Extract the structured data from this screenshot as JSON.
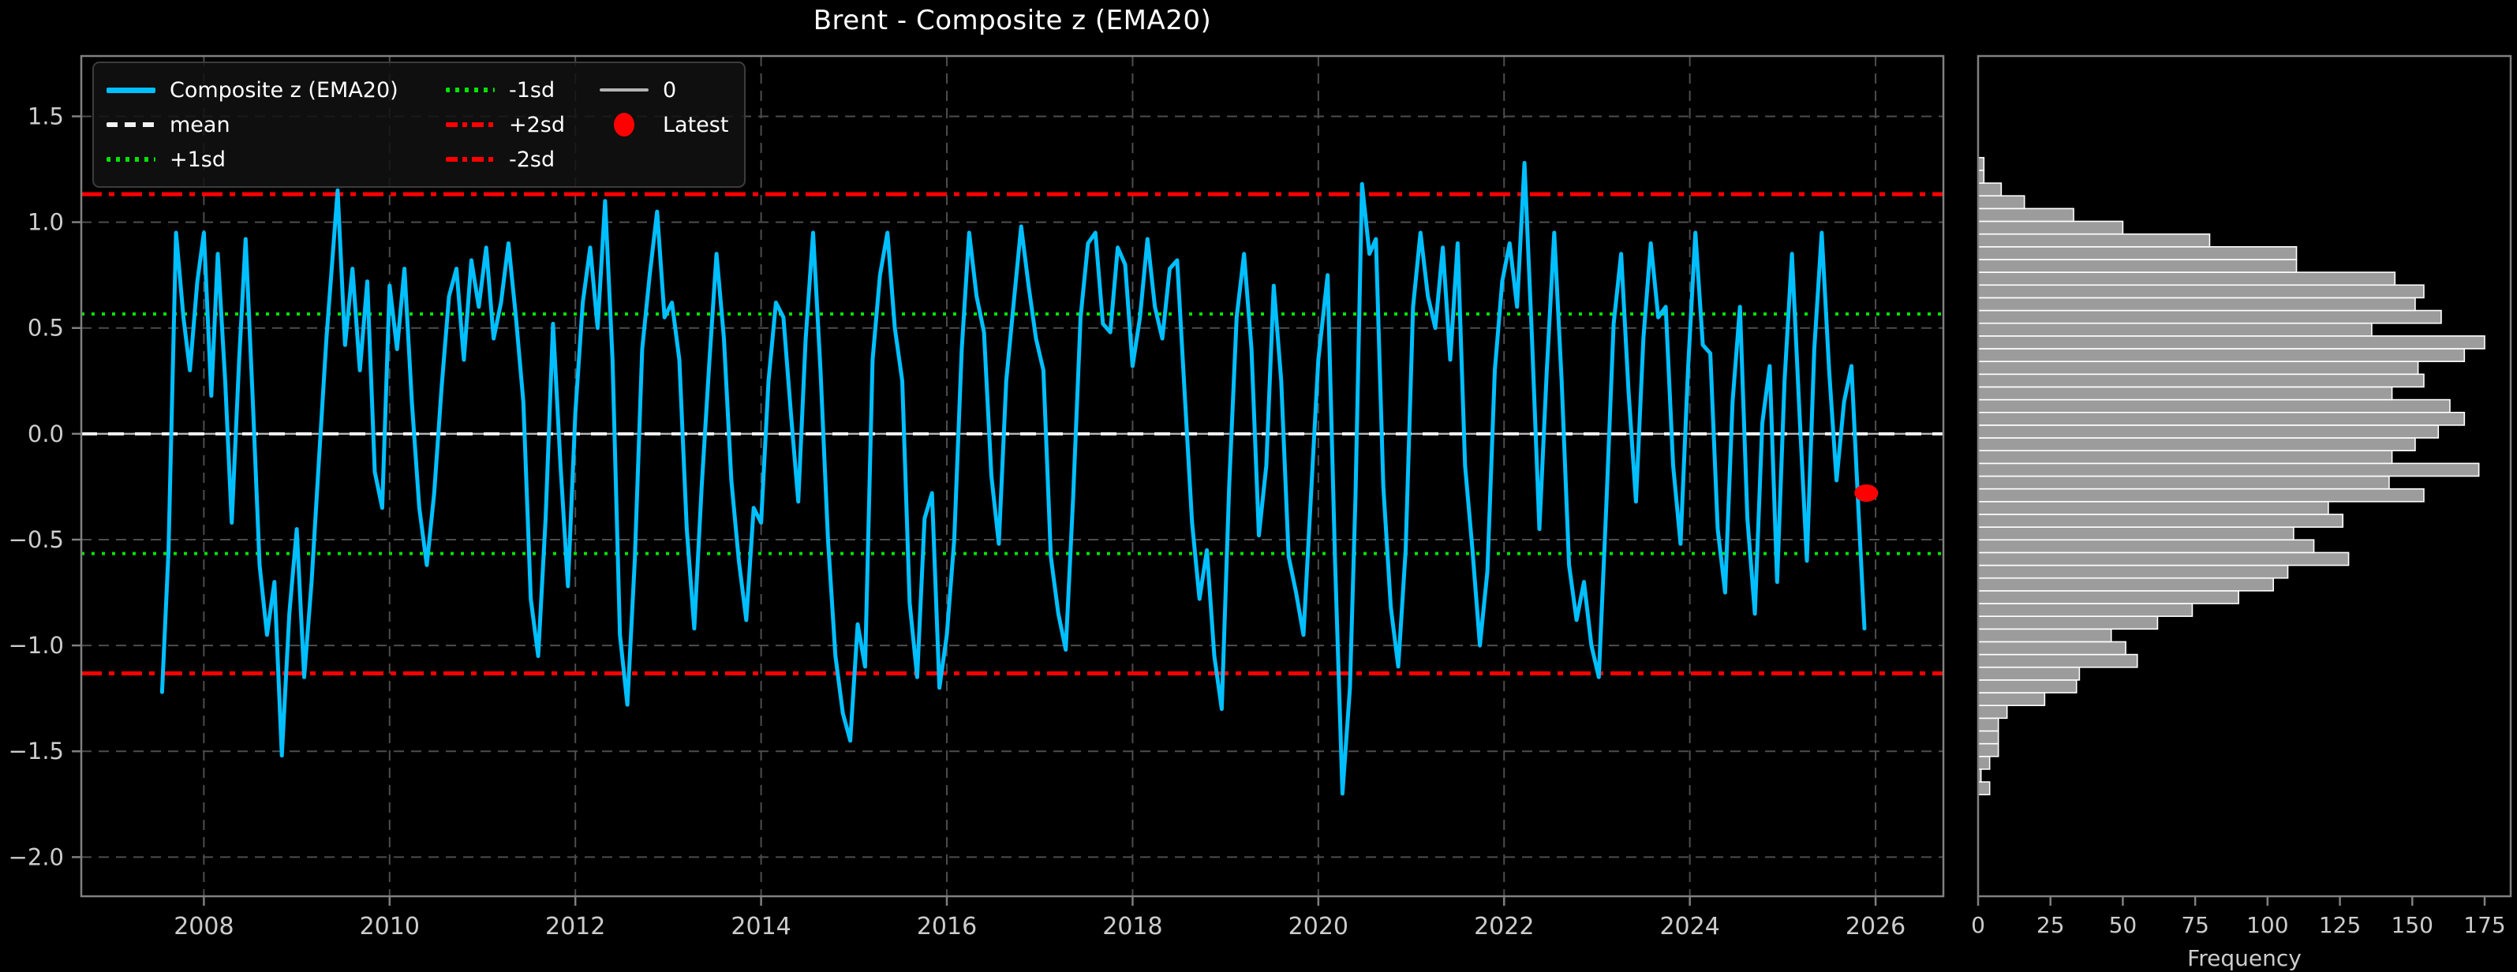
{
  "chart_title": "Brent - Composite z (EMA20)",
  "colors": {
    "background": "#000000",
    "series": "#00BFFF",
    "mean_line": "#F2F2F2",
    "sd1_line": "#00E600",
    "sd2_line": "#FF0000",
    "zero_line": "#B4B4B4",
    "latest_marker": "#FF0000",
    "grid": "#4D4D4D",
    "spine": "#808080",
    "tick_label": "#CCCCCC",
    "bar_fill": "#9C9C9C",
    "bar_edge": "#FFFFFF"
  },
  "legend": {
    "items": [
      {
        "label": "Composite z (EMA20)",
        "swatch": "solid-cyan"
      },
      {
        "label": "mean",
        "swatch": "dashed-white"
      },
      {
        "label": "+1sd",
        "swatch": "dotted-green"
      },
      {
        "label": "-1sd",
        "swatch": "dotted-green"
      },
      {
        "label": "+2sd",
        "swatch": "dashdot-red"
      },
      {
        "label": "-2sd",
        "swatch": "dashdot-red"
      },
      {
        "label": "0",
        "swatch": "solid-gray"
      },
      {
        "label": "Latest",
        "swatch": "marker-red"
      }
    ]
  },
  "chart_data": [
    {
      "type": "line",
      "title": "Brent - Composite z (EMA20)",
      "xlabel": "",
      "ylabel": "",
      "xlim": [
        2006.68,
        2026.73
      ],
      "ylim": [
        -2.185,
        1.785
      ],
      "x_ticks": [
        2008,
        2010,
        2012,
        2014,
        2016,
        2018,
        2020,
        2022,
        2024,
        2026
      ],
      "y_ticks": [
        1.5,
        1.0,
        0.5,
        0.0,
        -0.5,
        -1.0,
        -1.5,
        -2.0
      ],
      "y_tick_labels": [
        "1.5",
        "1.0",
        "0.5",
        "0.0",
        "−0.5",
        "−1.0",
        "−1.5",
        "−2.0"
      ],
      "grid": true,
      "legend_position": "upper left",
      "series_name": "Composite z (EMA20)",
      "reference_lines": {
        "mean": 0.0,
        "plus1sd": 0.566,
        "minus1sd": -0.566,
        "plus2sd": 1.132,
        "minus2sd": -1.132,
        "zero": 0.0
      },
      "latest": {
        "x": 2025.9,
        "y": -0.28
      },
      "points": [
        [
          2007.55,
          -1.22
        ],
        [
          2007.62,
          -0.55
        ],
        [
          2007.7,
          0.95
        ],
        [
          2007.78,
          0.55
        ],
        [
          2007.85,
          0.3
        ],
        [
          2007.93,
          0.72
        ],
        [
          2008.0,
          0.95
        ],
        [
          2008.08,
          0.18
        ],
        [
          2008.15,
          0.85
        ],
        [
          2008.23,
          0.25
        ],
        [
          2008.3,
          -0.42
        ],
        [
          2008.38,
          0.35
        ],
        [
          2008.45,
          0.92
        ],
        [
          2008.53,
          0.12
        ],
        [
          2008.6,
          -0.62
        ],
        [
          2008.68,
          -0.95
        ],
        [
          2008.76,
          -0.7
        ],
        [
          2008.84,
          -1.52
        ],
        [
          2008.92,
          -0.85
        ],
        [
          2009.0,
          -0.45
        ],
        [
          2009.08,
          -1.15
        ],
        [
          2009.16,
          -0.7
        ],
        [
          2009.24,
          -0.12
        ],
        [
          2009.32,
          0.45
        ],
        [
          2009.44,
          1.15
        ],
        [
          2009.52,
          0.42
        ],
        [
          2009.6,
          0.78
        ],
        [
          2009.68,
          0.3
        ],
        [
          2009.76,
          0.72
        ],
        [
          2009.84,
          -0.18
        ],
        [
          2009.92,
          -0.35
        ],
        [
          2010.0,
          0.7
        ],
        [
          2010.08,
          0.4
        ],
        [
          2010.16,
          0.78
        ],
        [
          2010.24,
          0.15
        ],
        [
          2010.32,
          -0.35
        ],
        [
          2010.4,
          -0.62
        ],
        [
          2010.48,
          -0.28
        ],
        [
          2010.56,
          0.22
        ],
        [
          2010.64,
          0.65
        ],
        [
          2010.72,
          0.78
        ],
        [
          2010.8,
          0.35
        ],
        [
          2010.88,
          0.82
        ],
        [
          2010.96,
          0.6
        ],
        [
          2011.04,
          0.88
        ],
        [
          2011.12,
          0.45
        ],
        [
          2011.2,
          0.62
        ],
        [
          2011.28,
          0.9
        ],
        [
          2011.36,
          0.55
        ],
        [
          2011.44,
          0.15
        ],
        [
          2011.52,
          -0.78
        ],
        [
          2011.6,
          -1.05
        ],
        [
          2011.68,
          -0.4
        ],
        [
          2011.76,
          0.52
        ],
        [
          2011.84,
          -0.15
        ],
        [
          2011.92,
          -0.72
        ],
        [
          2012.0,
          0.1
        ],
        [
          2012.08,
          0.62
        ],
        [
          2012.16,
          0.88
        ],
        [
          2012.24,
          0.5
        ],
        [
          2012.32,
          1.1
        ],
        [
          2012.4,
          0.35
        ],
        [
          2012.48,
          -0.95
        ],
        [
          2012.56,
          -1.28
        ],
        [
          2012.64,
          -0.6
        ],
        [
          2012.72,
          0.4
        ],
        [
          2012.8,
          0.75
        ],
        [
          2012.88,
          1.05
        ],
        [
          2012.96,
          0.55
        ],
        [
          2013.04,
          0.62
        ],
        [
          2013.12,
          0.35
        ],
        [
          2013.2,
          -0.45
        ],
        [
          2013.28,
          -0.92
        ],
        [
          2013.36,
          -0.25
        ],
        [
          2013.44,
          0.32
        ],
        [
          2013.52,
          0.85
        ],
        [
          2013.6,
          0.45
        ],
        [
          2013.68,
          -0.22
        ],
        [
          2013.76,
          -0.6
        ],
        [
          2013.84,
          -0.88
        ],
        [
          2013.92,
          -0.35
        ],
        [
          2014.0,
          -0.42
        ],
        [
          2014.08,
          0.25
        ],
        [
          2014.16,
          0.62
        ],
        [
          2014.24,
          0.55
        ],
        [
          2014.32,
          0.1
        ],
        [
          2014.4,
          -0.32
        ],
        [
          2014.48,
          0.45
        ],
        [
          2014.56,
          0.95
        ],
        [
          2014.64,
          0.3
        ],
        [
          2014.72,
          -0.5
        ],
        [
          2014.8,
          -1.05
        ],
        [
          2014.88,
          -1.32
        ],
        [
          2014.96,
          -1.45
        ],
        [
          2015.04,
          -0.9
        ],
        [
          2015.12,
          -1.1
        ],
        [
          2015.2,
          0.35
        ],
        [
          2015.28,
          0.75
        ],
        [
          2015.36,
          0.95
        ],
        [
          2015.44,
          0.5
        ],
        [
          2015.52,
          0.25
        ],
        [
          2015.6,
          -0.8
        ],
        [
          2015.68,
          -1.15
        ],
        [
          2015.76,
          -0.4
        ],
        [
          2015.84,
          -0.28
        ],
        [
          2015.92,
          -1.2
        ],
        [
          2016.0,
          -0.95
        ],
        [
          2016.08,
          -0.5
        ],
        [
          2016.16,
          0.4
        ],
        [
          2016.24,
          0.95
        ],
        [
          2016.32,
          0.65
        ],
        [
          2016.4,
          0.48
        ],
        [
          2016.48,
          -0.2
        ],
        [
          2016.56,
          -0.52
        ],
        [
          2016.64,
          0.25
        ],
        [
          2016.72,
          0.62
        ],
        [
          2016.8,
          0.98
        ],
        [
          2016.88,
          0.7
        ],
        [
          2016.96,
          0.45
        ],
        [
          2017.04,
          0.3
        ],
        [
          2017.12,
          -0.58
        ],
        [
          2017.2,
          -0.85
        ],
        [
          2017.28,
          -1.02
        ],
        [
          2017.36,
          -0.3
        ],
        [
          2017.44,
          0.55
        ],
        [
          2017.52,
          0.9
        ],
        [
          2017.6,
          0.95
        ],
        [
          2017.68,
          0.52
        ],
        [
          2017.76,
          0.48
        ],
        [
          2017.84,
          0.88
        ],
        [
          2017.92,
          0.8
        ],
        [
          2018.0,
          0.32
        ],
        [
          2018.08,
          0.55
        ],
        [
          2018.16,
          0.92
        ],
        [
          2018.24,
          0.6
        ],
        [
          2018.32,
          0.45
        ],
        [
          2018.4,
          0.78
        ],
        [
          2018.48,
          0.82
        ],
        [
          2018.56,
          0.2
        ],
        [
          2018.64,
          -0.42
        ],
        [
          2018.72,
          -0.78
        ],
        [
          2018.8,
          -0.55
        ],
        [
          2018.88,
          -1.05
        ],
        [
          2018.96,
          -1.3
        ],
        [
          2019.04,
          -0.25
        ],
        [
          2019.12,
          0.55
        ],
        [
          2019.2,
          0.85
        ],
        [
          2019.28,
          0.4
        ],
        [
          2019.36,
          -0.48
        ],
        [
          2019.44,
          -0.15
        ],
        [
          2019.52,
          0.7
        ],
        [
          2019.6,
          0.25
        ],
        [
          2019.68,
          -0.58
        ],
        [
          2019.76,
          -0.75
        ],
        [
          2019.84,
          -0.95
        ],
        [
          2019.92,
          -0.3
        ],
        [
          2020.0,
          0.35
        ],
        [
          2020.1,
          0.75
        ],
        [
          2020.18,
          -0.6
        ],
        [
          2020.26,
          -1.7
        ],
        [
          2020.34,
          -1.2
        ],
        [
          2020.4,
          -0.3
        ],
        [
          2020.47,
          1.18
        ],
        [
          2020.55,
          0.85
        ],
        [
          2020.62,
          0.92
        ],
        [
          2020.7,
          -0.25
        ],
        [
          2020.78,
          -0.82
        ],
        [
          2020.86,
          -1.1
        ],
        [
          2020.94,
          -0.55
        ],
        [
          2021.02,
          0.6
        ],
        [
          2021.1,
          0.95
        ],
        [
          2021.18,
          0.65
        ],
        [
          2021.26,
          0.5
        ],
        [
          2021.34,
          0.88
        ],
        [
          2021.42,
          0.35
        ],
        [
          2021.5,
          0.9
        ],
        [
          2021.58,
          -0.15
        ],
        [
          2021.66,
          -0.55
        ],
        [
          2021.74,
          -1.0
        ],
        [
          2021.82,
          -0.65
        ],
        [
          2021.9,
          0.3
        ],
        [
          2021.98,
          0.72
        ],
        [
          2022.06,
          0.9
        ],
        [
          2022.14,
          0.6
        ],
        [
          2022.22,
          1.28
        ],
        [
          2022.3,
          0.45
        ],
        [
          2022.38,
          -0.45
        ],
        [
          2022.46,
          0.3
        ],
        [
          2022.54,
          0.95
        ],
        [
          2022.62,
          0.25
        ],
        [
          2022.7,
          -0.62
        ],
        [
          2022.78,
          -0.88
        ],
        [
          2022.86,
          -0.7
        ],
        [
          2022.94,
          -1.0
        ],
        [
          2023.02,
          -1.15
        ],
        [
          2023.1,
          -0.35
        ],
        [
          2023.18,
          0.52
        ],
        [
          2023.26,
          0.85
        ],
        [
          2023.34,
          0.2
        ],
        [
          2023.42,
          -0.32
        ],
        [
          2023.5,
          0.45
        ],
        [
          2023.58,
          0.9
        ],
        [
          2023.66,
          0.55
        ],
        [
          2023.74,
          0.6
        ],
        [
          2023.82,
          -0.15
        ],
        [
          2023.9,
          -0.52
        ],
        [
          2023.98,
          0.3
        ],
        [
          2024.06,
          0.95
        ],
        [
          2024.14,
          0.42
        ],
        [
          2024.22,
          0.38
        ],
        [
          2024.3,
          -0.45
        ],
        [
          2024.38,
          -0.75
        ],
        [
          2024.46,
          0.15
        ],
        [
          2024.54,
          0.6
        ],
        [
          2024.62,
          -0.4
        ],
        [
          2024.7,
          -0.85
        ],
        [
          2024.78,
          0.05
        ],
        [
          2024.86,
          0.32
        ],
        [
          2024.94,
          -0.7
        ],
        [
          2025.02,
          0.25
        ],
        [
          2025.1,
          0.85
        ],
        [
          2025.18,
          0.1
        ],
        [
          2025.26,
          -0.6
        ],
        [
          2025.34,
          0.4
        ],
        [
          2025.42,
          0.95
        ],
        [
          2025.5,
          0.3
        ],
        [
          2025.58,
          -0.22
        ],
        [
          2025.66,
          0.15
        ],
        [
          2025.74,
          0.32
        ],
        [
          2025.82,
          -0.4
        ],
        [
          2025.88,
          -0.92
        ]
      ]
    },
    {
      "type": "bar",
      "orientation": "horizontal",
      "xlabel": "Frequency",
      "x_ticks": [
        0,
        25,
        50,
        75,
        100,
        125,
        150,
        175
      ],
      "xlim": [
        0,
        184
      ],
      "ylim": [
        -2.185,
        1.785
      ],
      "grid": false,
      "bin_start": -1.705,
      "bin_width": 0.0602,
      "frequencies_bottom_to_top": [
        4,
        1,
        4,
        7,
        7,
        7,
        10,
        23,
        34,
        35,
        55,
        51,
        46,
        62,
        74,
        90,
        102,
        107,
        128,
        116,
        109,
        126,
        121,
        154,
        142,
        173,
        143,
        151,
        159,
        168,
        163,
        143,
        154,
        152,
        168,
        175,
        136,
        160,
        151,
        154,
        144,
        110,
        110,
        80,
        50,
        33,
        16,
        8,
        2,
        2
      ]
    }
  ]
}
